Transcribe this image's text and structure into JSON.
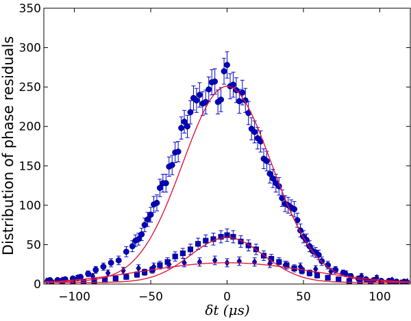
{
  "chart_data": {
    "type": "scatter",
    "title": "",
    "xlabel": "δt (μs)",
    "ylabel": "Distribution of phase residuals",
    "xlim": [
      -120,
      120
    ],
    "ylim": [
      0,
      350
    ],
    "x_ticks": [
      -100,
      -50,
      0,
      50,
      100
    ],
    "y_ticks": [
      0,
      50,
      100,
      150,
      200,
      250,
      300,
      350
    ],
    "x_tick_labels": [
      "−100",
      "−50",
      "0",
      "50",
      "100"
    ],
    "y_tick_labels": [
      "0",
      "50",
      "100",
      "150",
      "200",
      "250",
      "300",
      "350"
    ],
    "grid": false,
    "legend": "none",
    "series": [
      {
        "name": "Gaussian fit (broad)",
        "kind": "line",
        "color": "#e0163c",
        "function": "gaussian",
        "amplitude": 248,
        "center": 0,
        "sigma": 29,
        "baseline": 3
      },
      {
        "name": "Gaussian fit (middle)",
        "kind": "line",
        "color": "#e0163c",
        "function": "gaussian",
        "amplitude": 57,
        "center": 0,
        "sigma": 24,
        "baseline": 2
      },
      {
        "name": "Gaussian fit (wide)",
        "kind": "line",
        "color": "#e0163c",
        "function": "gaussian",
        "amplitude": 27,
        "center": 0,
        "sigma": 55,
        "baseline": 0
      },
      {
        "name": "circles",
        "kind": "scatter",
        "marker": "circle",
        "color": "#0000c8",
        "errorbars": true,
        "x": [
          -116,
          -111,
          -106,
          -101,
          -96,
          -91,
          -86,
          -81,
          -76,
          -71,
          -66,
          -62,
          -60,
          -58,
          -56,
          -54,
          -52,
          -50,
          -48,
          -46,
          -44,
          -42,
          -40,
          -38,
          -36,
          -34,
          -32,
          -30,
          -28,
          -26,
          -24,
          -22,
          -20,
          -18,
          -16,
          -14,
          -12,
          -10,
          -8,
          -6,
          -4,
          -2,
          0,
          2,
          4,
          6,
          8,
          10,
          12,
          14,
          16,
          18,
          20,
          22,
          24,
          26,
          28,
          30,
          32,
          34,
          36,
          38,
          40,
          42,
          44,
          46,
          48,
          50,
          52,
          54,
          56,
          58,
          60,
          62,
          66,
          71,
          76,
          81,
          86,
          91,
          96,
          101,
          106,
          111,
          116
        ],
        "y": [
          5,
          5,
          6,
          7,
          9,
          13,
          18,
          22,
          27,
          30,
          41,
          48,
          55,
          57,
          63,
          75,
          82,
          88,
          101,
          103,
          122,
          128,
          128,
          149,
          151,
          167,
          168,
          198,
          206,
          200,
          218,
          236,
          233,
          240,
          229,
          231,
          247,
          256,
          257,
          231,
          234,
          270,
          278,
          251,
          253,
          246,
          232,
          243,
          233,
          217,
          197,
          193,
          185,
          181,
          159,
          156,
          140,
          134,
          128,
          124,
          109,
          102,
          100,
          97,
          95,
          81,
          68,
          60,
          56,
          48,
          42,
          40,
          37,
          29,
          24,
          18,
          14,
          10,
          7,
          6,
          5,
          4,
          4,
          3,
          3
        ]
      },
      {
        "name": "squares",
        "kind": "scatter",
        "marker": "square",
        "color": "#0000c8",
        "errorbars": true,
        "x": [
          -115,
          -108,
          -101,
          -94,
          -87,
          -80,
          -73,
          -66,
          -59,
          -54,
          -49,
          -44,
          -39,
          -34,
          -29,
          -24,
          -19,
          -14,
          -9,
          -4,
          0,
          4,
          9,
          14,
          19,
          24,
          29,
          34,
          39,
          44,
          49,
          54,
          59,
          66,
          73,
          80,
          87,
          94,
          101,
          108,
          115
        ],
        "y": [
          2,
          2,
          2,
          3,
          4,
          5,
          7,
          9,
          12,
          15,
          18,
          24,
          28,
          35,
          39,
          44,
          51,
          55,
          57,
          60,
          62,
          60,
          54,
          49,
          44,
          36,
          32,
          28,
          24,
          20,
          17,
          14,
          11,
          8,
          6,
          4,
          3,
          3,
          2,
          2,
          2
        ]
      },
      {
        "name": "diamonds",
        "kind": "scatter",
        "marker": "diamond",
        "color": "#0000c8",
        "errorbars": true,
        "x": [
          -118,
          -108,
          -98,
          -88,
          -78,
          -68,
          -58,
          -48,
          -38,
          -28,
          -18,
          -8,
          0,
          8,
          18,
          28,
          38,
          48,
          58,
          68,
          78,
          88,
          98,
          108,
          118
        ],
        "y": [
          4,
          5,
          8,
          10,
          14,
          17,
          20,
          22,
          25,
          27,
          28,
          30,
          27,
          29,
          28,
          26,
          24,
          22,
          19,
          16,
          13,
          10,
          8,
          5,
          3
        ]
      }
    ]
  }
}
